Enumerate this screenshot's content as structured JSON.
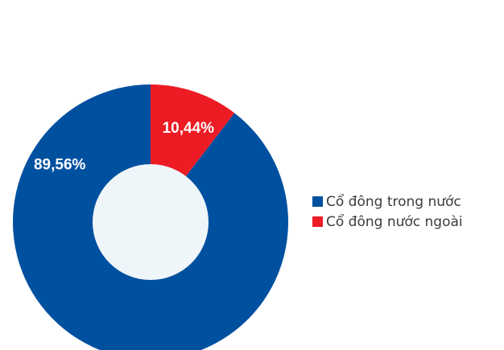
{
  "chart_data": {
    "type": "pie",
    "variant": "donut",
    "title": "",
    "series": [
      {
        "name": "Cổ đông trong nước",
        "value": 89.56,
        "label": "89,56%",
        "color": "#0050A0"
      },
      {
        "name": "Cổ đông nước ngoài",
        "value": 10.44,
        "label": "10,44%",
        "color": "#ED1C24"
      }
    ],
    "center_color": "#EFF6FA",
    "legend_position": "right"
  },
  "legend": {
    "items": [
      {
        "label": "Cổ đông trong nước",
        "color": "#0050A0"
      },
      {
        "label": "Cổ đông nước ngoài",
        "color": "#ED1C24"
      }
    ]
  }
}
